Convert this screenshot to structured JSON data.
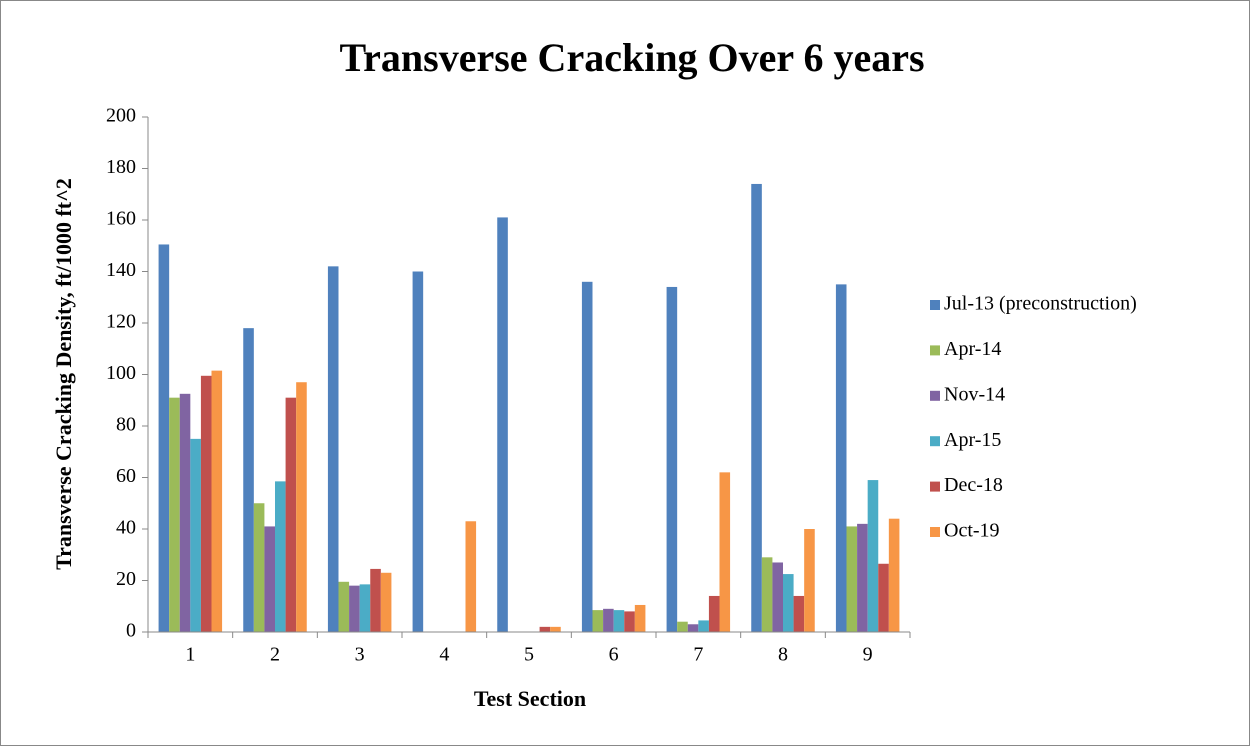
{
  "chart_data": {
    "type": "bar",
    "title": "Transverse Cracking Over 6 years",
    "x_label": "Test Section",
    "y_label": "Transverse Cracking Density, ft/1000 ft^2",
    "categories": [
      "1",
      "2",
      "3",
      "4",
      "5",
      "6",
      "7",
      "8",
      "9"
    ],
    "series": [
      {
        "name": "Jul-13 (preconstruction)",
        "color": "#4f81bd",
        "values": [
          150.5,
          118,
          142,
          140,
          161,
          136,
          134,
          174,
          135
        ]
      },
      {
        "name": "Apr-14",
        "color": "#9bbb59",
        "values": [
          91,
          50,
          19.5,
          0,
          0,
          8.5,
          4,
          29,
          41
        ]
      },
      {
        "name": "Nov-14",
        "color": "#8064a2",
        "values": [
          92.5,
          41,
          18,
          0,
          0,
          9,
          3,
          27,
          42
        ]
      },
      {
        "name": "Apr-15",
        "color": "#4bacc6",
        "values": [
          75,
          58.5,
          18.5,
          0,
          0,
          8.5,
          4.5,
          22.5,
          59
        ]
      },
      {
        "name": "Dec-18",
        "color": "#c0504d",
        "values": [
          99.5,
          91,
          24.5,
          0,
          2,
          8,
          14,
          14,
          26.5
        ]
      },
      {
        "name": "Oct-19",
        "color": "#f79646",
        "values": [
          101.5,
          97,
          23,
          43,
          2,
          10.5,
          62,
          40,
          44
        ]
      }
    ],
    "ylim": [
      0,
      200
    ],
    "yticks": [
      0,
      20,
      40,
      60,
      80,
      100,
      120,
      140,
      160,
      180,
      200
    ],
    "grid": false,
    "legend": "right"
  }
}
